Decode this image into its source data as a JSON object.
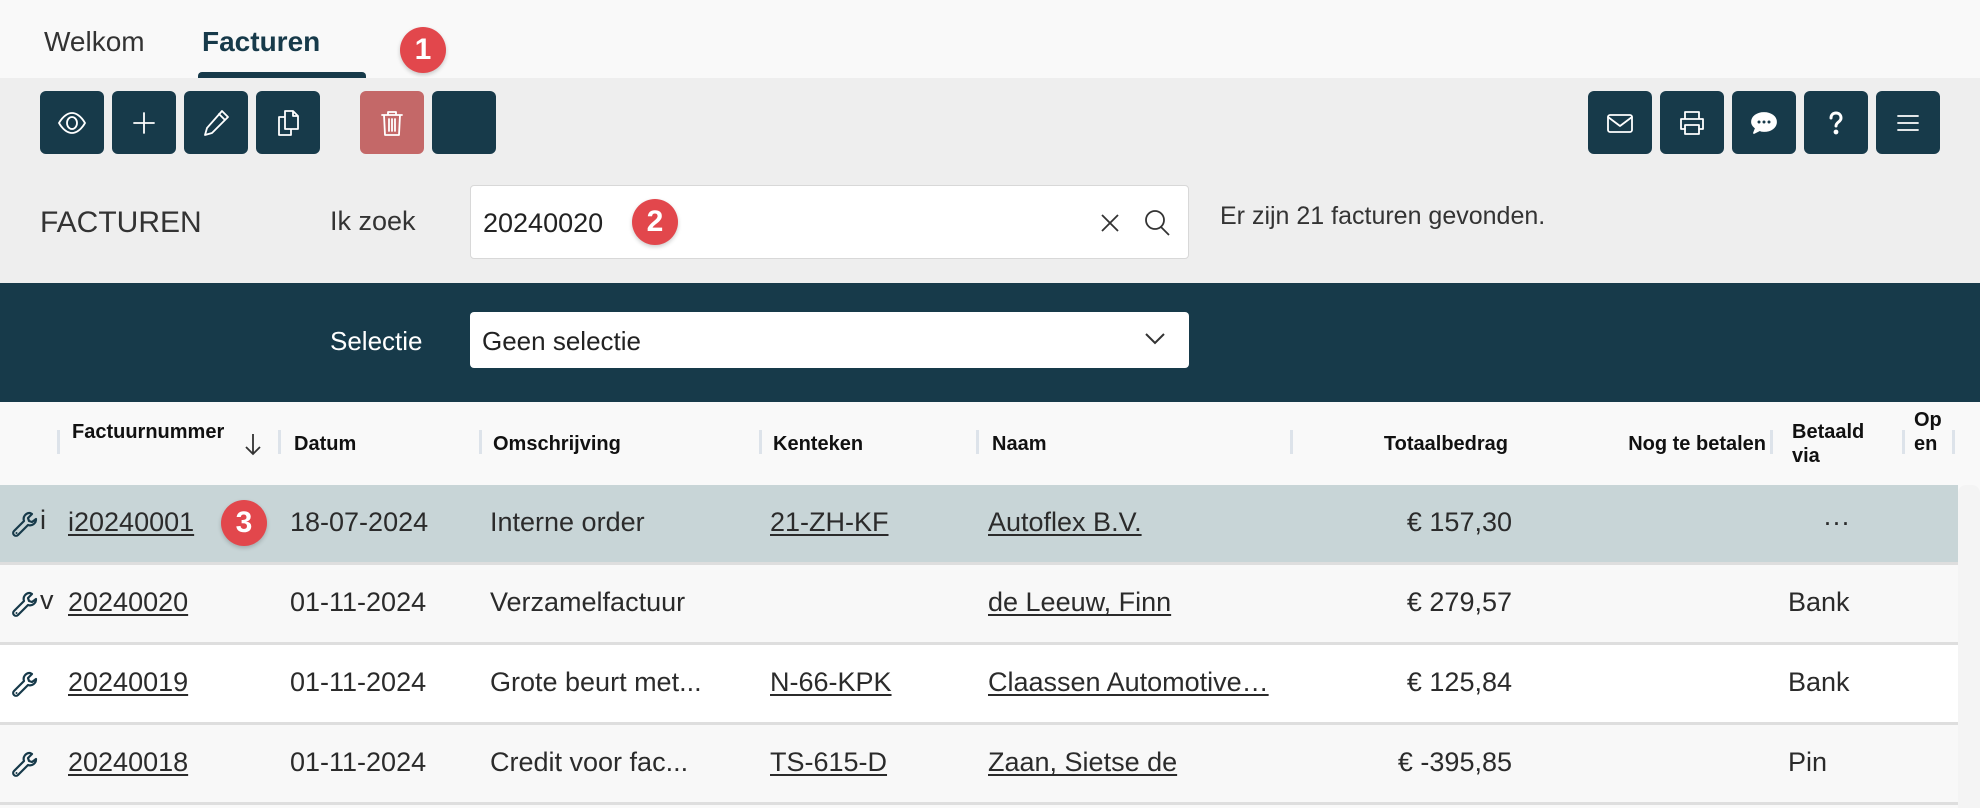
{
  "tabs": [
    {
      "label": "Welkom"
    },
    {
      "label": "Facturen",
      "active": true
    }
  ],
  "annotations": [
    "1",
    "2",
    "3"
  ],
  "toolbar": {
    "left": [
      {
        "icon": "eye-icon",
        "name": "view"
      },
      {
        "icon": "plus-icon",
        "name": "add"
      },
      {
        "icon": "pencil-icon",
        "name": "edit"
      },
      {
        "icon": "copy-icon",
        "name": "copy"
      },
      {
        "icon": "trash-icon",
        "name": "delete"
      },
      {
        "icon": "blank",
        "name": "extra"
      }
    ],
    "right": [
      {
        "icon": "mail-icon",
        "name": "mail"
      },
      {
        "icon": "printer-icon",
        "name": "print"
      },
      {
        "icon": "chat-icon",
        "name": "chat"
      },
      {
        "icon": "help-icon",
        "name": "help"
      },
      {
        "icon": "menu-icon",
        "name": "menu"
      }
    ]
  },
  "search": {
    "section_title": "FACTUREN",
    "label": "Ik zoek",
    "value": "20240020",
    "result_text": "Er zijn 21 facturen gevonden."
  },
  "selection": {
    "label": "Selectie",
    "value": "Geen selectie"
  },
  "colors": {
    "primary": "#173a4a",
    "danger": "#c46868",
    "badge": "#e2474c",
    "selected_row": "#c8d5d7"
  },
  "table": {
    "columns": [
      "Factuurnummer",
      "Datum",
      "Omschrijving",
      "Kenteken",
      "Naam",
      "Totaalbedrag",
      "Nog te betalen",
      "Betaald via",
      "Open"
    ],
    "sort": {
      "column": "Factuurnummer",
      "direction": "descending"
    },
    "rows": [
      {
        "type": "i",
        "number": "i20240001",
        "date": "18-07-2024",
        "description": "Interne order",
        "plate": "21-ZH-KF",
        "name": "Autoflex B.V.",
        "total": "€ 157,30",
        "due": "",
        "paid_via": "···",
        "selected": true
      },
      {
        "type": "v",
        "number": "20240020",
        "date": "01-11-2024",
        "description": "Verzamelfactuur",
        "plate": "",
        "name": "de Leeuw, Finn",
        "total": "€ 279,57",
        "due": "",
        "paid_via": "Bank"
      },
      {
        "type": "",
        "number": "20240019",
        "date": "01-11-2024",
        "description": "Grote beurt met...",
        "plate": "N-66-KPK",
        "name": "Claassen Automotive…",
        "total": "€ 125,84",
        "due": "",
        "paid_via": "Bank"
      },
      {
        "type": "",
        "number": "20240018",
        "date": "01-11-2024",
        "description": "Credit voor fac...",
        "plate": "TS-615-D",
        "name": "Zaan, Sietse de",
        "total": "€ -395,85",
        "due": "",
        "paid_via": "Pin"
      }
    ]
  }
}
